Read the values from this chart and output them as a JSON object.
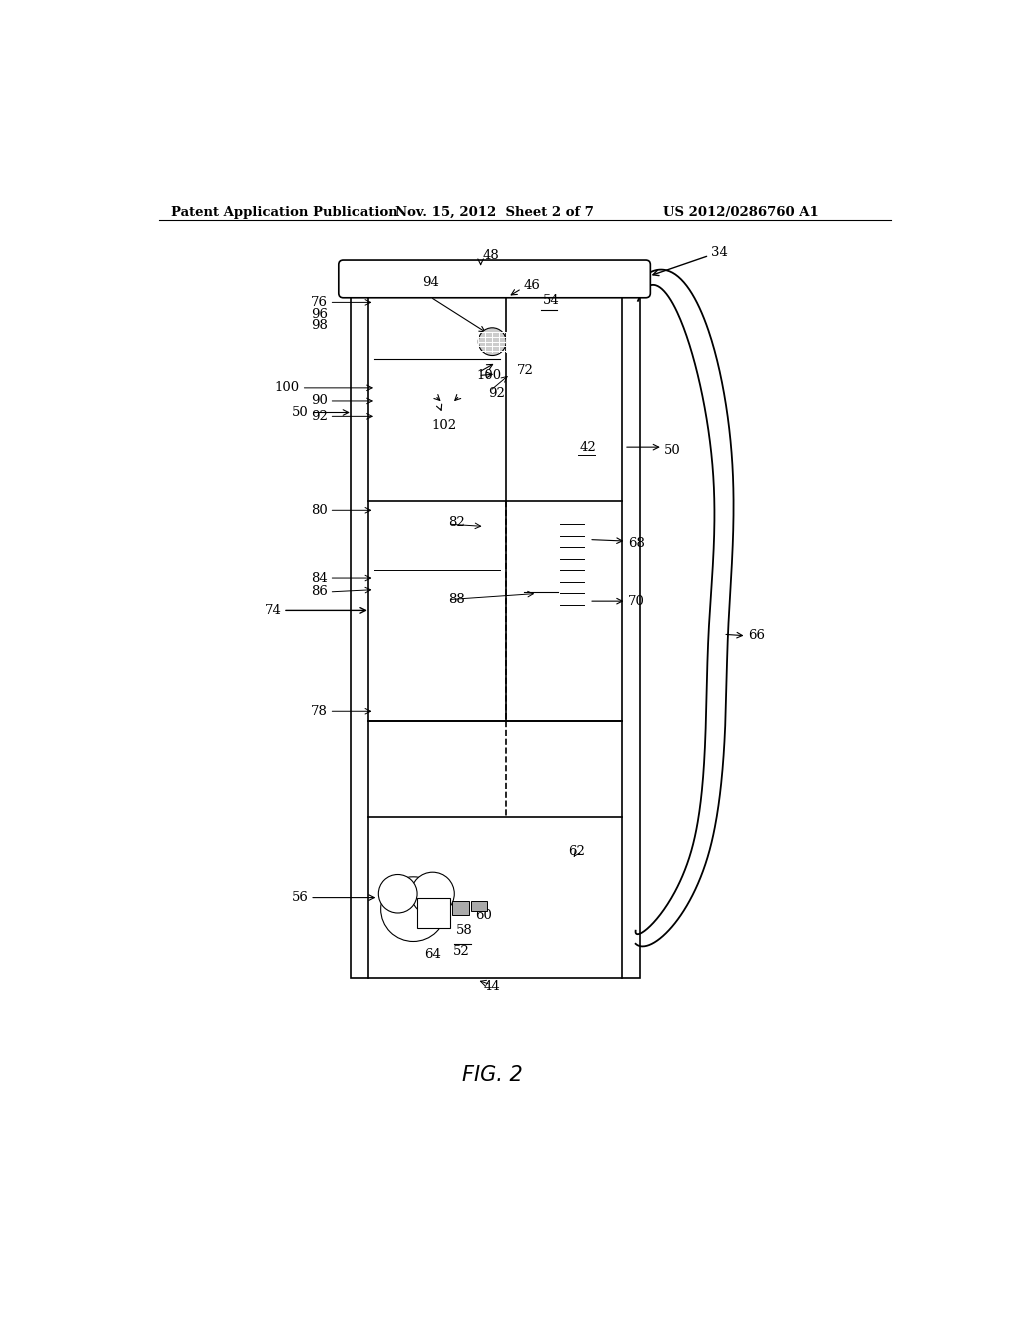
{
  "bg_color": "#ffffff",
  "line_color": "#000000",
  "header_left": "Patent Application Publication",
  "header_mid": "Nov. 15, 2012  Sheet 2 of 7",
  "header_right": "US 2012/0286760 A1",
  "fig_label": "FIG. 2",
  "label_fontsize": 9.5
}
